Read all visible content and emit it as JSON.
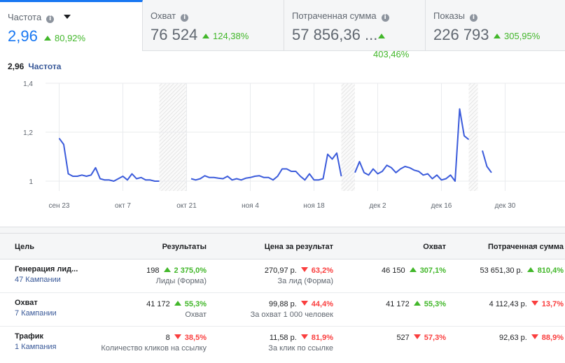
{
  "tabs": [
    {
      "label": "Частота",
      "value": "2,96",
      "delta": "80,92%",
      "active": true
    },
    {
      "label": "Охват",
      "value": "76 524",
      "delta": "124,38%"
    },
    {
      "label": "Потраченная сумма",
      "value": "57 856,36 ...",
      "delta": "403,46%"
    },
    {
      "label": "Показы",
      "value": "226 793",
      "delta": "305,95%"
    }
  ],
  "chart_header": {
    "value": "2,96",
    "label": "Частота"
  },
  "chart_data": {
    "type": "line",
    "y_ticks": [
      "1,4",
      "1,2",
      "1"
    ],
    "ylim": [
      0.96,
      1.4
    ],
    "x_ticks": [
      "сен 23",
      "окт 7",
      "окт 21",
      "ноя 4",
      "ноя 18",
      "дек 2",
      "дек 16",
      "дек 30"
    ],
    "x_tick_index": [
      3,
      17,
      31,
      45,
      59,
      73,
      87,
      101
    ],
    "series_color": "#3b5bdb",
    "segments": [
      [
        [
          3,
          1.175
        ],
        [
          4,
          1.15
        ],
        [
          5,
          1.03
        ],
        [
          6,
          1.02
        ],
        [
          7,
          1.02
        ],
        [
          8,
          1.025
        ],
        [
          9,
          1.02
        ],
        [
          10,
          1.025
        ],
        [
          11,
          1.055
        ],
        [
          12,
          1.01
        ],
        [
          13,
          1.005
        ],
        [
          14,
          1.005
        ],
        [
          15,
          1.0
        ],
        [
          16,
          1.01
        ],
        [
          17,
          1.02
        ],
        [
          18,
          1.005
        ],
        [
          19,
          1.03
        ],
        [
          20,
          1.01
        ],
        [
          21,
          1.015
        ],
        [
          22,
          1.005
        ],
        [
          23,
          1.005
        ],
        [
          24,
          1.0
        ],
        [
          25,
          1.0
        ]
      ],
      [
        [
          32,
          1.01
        ],
        [
          33,
          1.005
        ],
        [
          34,
          1.01
        ],
        [
          35,
          1.022
        ],
        [
          36,
          1.015
        ],
        [
          37,
          1.015
        ],
        [
          38,
          1.012
        ],
        [
          39,
          1.01
        ],
        [
          40,
          1.02
        ],
        [
          41,
          1.005
        ],
        [
          42,
          1.01
        ],
        [
          43,
          1.005
        ],
        [
          44,
          1.012
        ],
        [
          45,
          1.015
        ],
        [
          46,
          1.02
        ],
        [
          47,
          1.022
        ],
        [
          48,
          1.015
        ],
        [
          49,
          1.015
        ],
        [
          50,
          1.005
        ],
        [
          51,
          1.02
        ],
        [
          52,
          1.05
        ],
        [
          53,
          1.05
        ],
        [
          54,
          1.04
        ],
        [
          55,
          1.04
        ],
        [
          56,
          1.02
        ],
        [
          57,
          1.005
        ],
        [
          58,
          1.03
        ],
        [
          59,
          1.005
        ],
        [
          60,
          1.005
        ],
        [
          61,
          1.01
        ],
        [
          62,
          1.11
        ],
        [
          63,
          1.09
        ],
        [
          64,
          1.115
        ],
        [
          65,
          1.02
        ]
      ],
      [
        [
          68,
          1.035
        ],
        [
          69,
          1.08
        ],
        [
          70,
          1.035
        ],
        [
          71,
          1.025
        ],
        [
          72,
          1.05
        ],
        [
          73,
          1.03
        ],
        [
          74,
          1.04
        ],
        [
          75,
          1.065
        ],
        [
          76,
          1.055
        ],
        [
          77,
          1.035
        ],
        [
          78,
          1.05
        ],
        [
          79,
          1.06
        ],
        [
          80,
          1.055
        ],
        [
          81,
          1.045
        ],
        [
          82,
          1.04
        ],
        [
          83,
          1.025
        ],
        [
          84,
          1.03
        ],
        [
          85,
          1.01
        ],
        [
          86,
          1.025
        ],
        [
          87,
          1.005
        ],
        [
          88,
          1.01
        ],
        [
          89,
          1.025
        ],
        [
          90,
          1.0
        ],
        [
          91,
          1.295
        ],
        [
          92,
          1.185
        ],
        [
          93,
          1.17
        ]
      ],
      [
        [
          96,
          1.125
        ],
        [
          97,
          1.06
        ],
        [
          98,
          1.035
        ]
      ]
    ],
    "shaded_ranges": [
      [
        25,
        31
      ],
      [
        65,
        68
      ],
      [
        93,
        95
      ]
    ]
  },
  "table": {
    "headers": [
      "Цель",
      "Результаты",
      "Цена за результат",
      "Охват",
      "Потраченная сумма"
    ],
    "rows": [
      {
        "goal": "Генерация лид...",
        "campaigns": "47 Кампании",
        "results": "198",
        "results_delta": "2 375,0%",
        "results_dir": "up",
        "results_sub": "Лиды (Форма)",
        "cost": "270,97 р.",
        "cost_delta": "63,2%",
        "cost_dir": "down",
        "cost_sub": "За лид (Форма)",
        "reach": "46 150",
        "reach_delta": "307,1%",
        "reach_dir": "up",
        "spent": "53 651,30 р.",
        "spent_delta": "810,4%",
        "spent_dir": "up"
      },
      {
        "goal": "Охват",
        "campaigns": "7 Кампании",
        "results": "41 172",
        "results_delta": "55,3%",
        "results_dir": "up",
        "results_sub": "Охват",
        "cost": "99,88 р.",
        "cost_delta": "44,4%",
        "cost_dir": "down",
        "cost_sub": "За охват 1 000 человек",
        "reach": "41 172",
        "reach_delta": "55,3%",
        "reach_dir": "up",
        "spent": "4 112,43 р.",
        "spent_delta": "13,7%",
        "spent_dir": "down"
      },
      {
        "goal": "Трафик",
        "campaigns": "1 Кампания",
        "results": "8",
        "results_delta": "38,5%",
        "results_dir": "down",
        "results_sub": "Количество кликов на ссылку",
        "cost": "11,58 р.",
        "cost_delta": "81,9%",
        "cost_dir": "down",
        "cost_sub": "За клик по ссылке",
        "reach": "527",
        "reach_delta": "57,3%",
        "reach_dir": "down",
        "spent": "92,63 р.",
        "spent_delta": "88,9%",
        "spent_dir": "down"
      }
    ]
  }
}
